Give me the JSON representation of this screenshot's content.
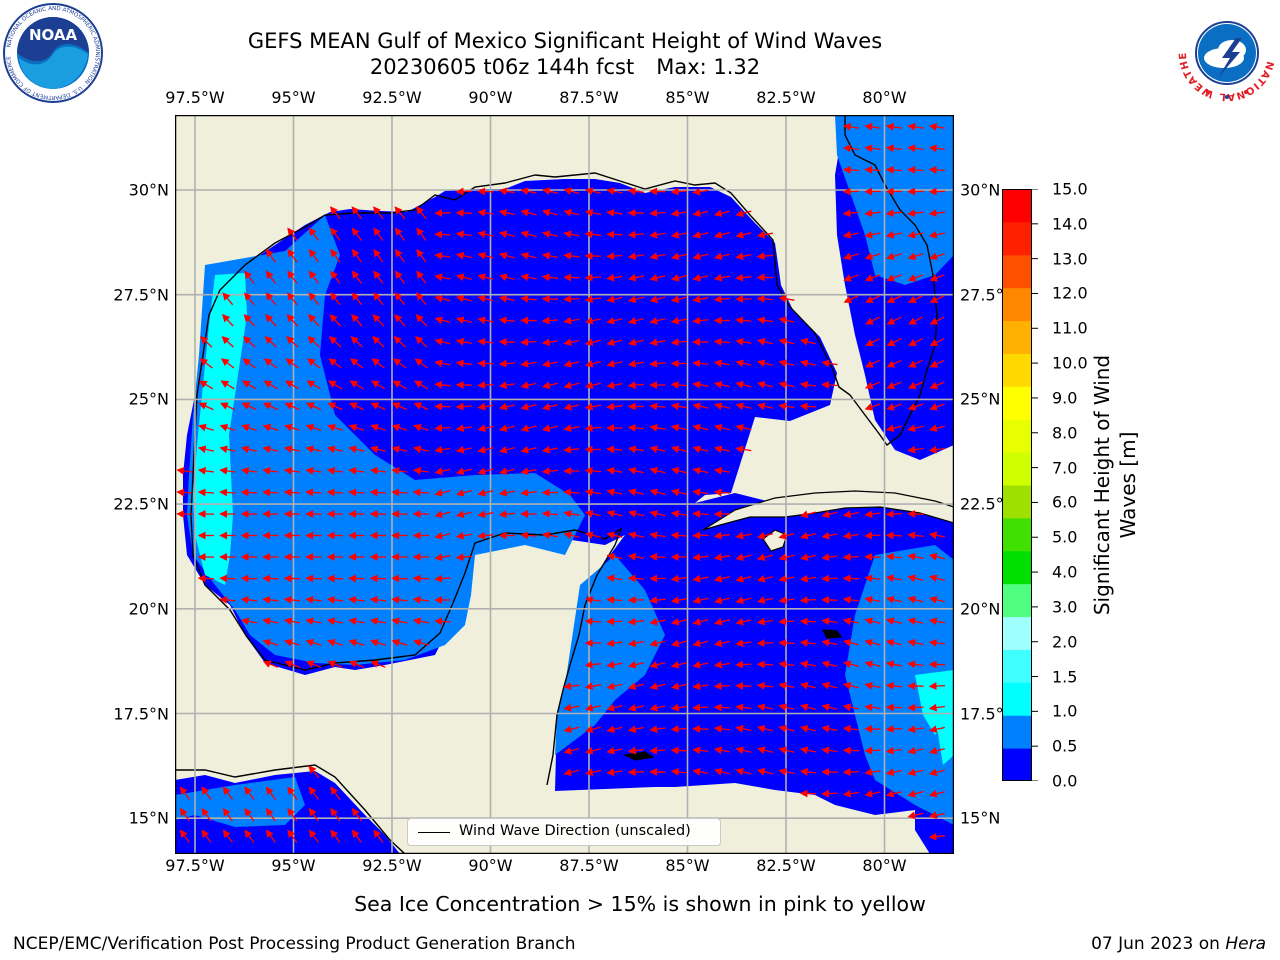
{
  "title": {
    "line1": "GEFS MEAN Gulf of Mexico Significant Height of Wind Waves",
    "run": "20230605 t06z 144h fcst",
    "max": "Max: 1.32"
  },
  "map": {
    "lon_ticks": [
      "97.5°W",
      "95°W",
      "92.5°W",
      "90°W",
      "87.5°W",
      "85°W",
      "82.5°W",
      "80°W"
    ],
    "lat_ticks": [
      "30°N",
      "27.5°N",
      "25°N",
      "22.5°N",
      "20°N",
      "17.5°N",
      "15°N"
    ],
    "colors": {
      "land": "#efefdc",
      "coast": "#000000",
      "grid": "#b0b0b0",
      "arrow": "#ff0000",
      "bin_0_0_5": "#0000ff",
      "bin_0_5_1_0": "#0080ff",
      "bin_1_0_1_5": "#00ffff"
    },
    "legend": {
      "label": "Wind Wave Direction (unscaled)"
    }
  },
  "colorbar": {
    "label": "Significant Height of Wind Waves [m]",
    "ticks": [
      "0.0",
      "0.5",
      "1.0",
      "1.5",
      "2.0",
      "3.0",
      "4.0",
      "5.0",
      "6.0",
      "7.0",
      "8.0",
      "9.0",
      "10.0",
      "11.0",
      "12.0",
      "13.0",
      "14.0",
      "15.0"
    ],
    "colors": [
      "#0000ff",
      "#0080ff",
      "#00ffff",
      "#40ffff",
      "#a0ffff",
      "#50ff80",
      "#00e000",
      "#40e000",
      "#a0e000",
      "#d0ff00",
      "#e8ff00",
      "#ffff00",
      "#ffd800",
      "#ffb000",
      "#ff8800",
      "#ff5000",
      "#ff2000",
      "#ff0000"
    ]
  },
  "note": "Sea Ice Concentration > 15% is shown in pink to yellow",
  "footer": {
    "left": "NCEP/EMC/Verification Post Processing Product Generation Branch",
    "date": "07 Jun 2023 on ",
    "host": "Hera"
  },
  "logos": {
    "noaa": "NOAA",
    "noaa_ring": "NATIONAL OCEANIC AND ATMOSPHERIC ADMINISTRATION · U.S. DEPARTMENT OF COMMERCE",
    "nws_ring": "NATIONAL WEATHER SERVICE"
  }
}
